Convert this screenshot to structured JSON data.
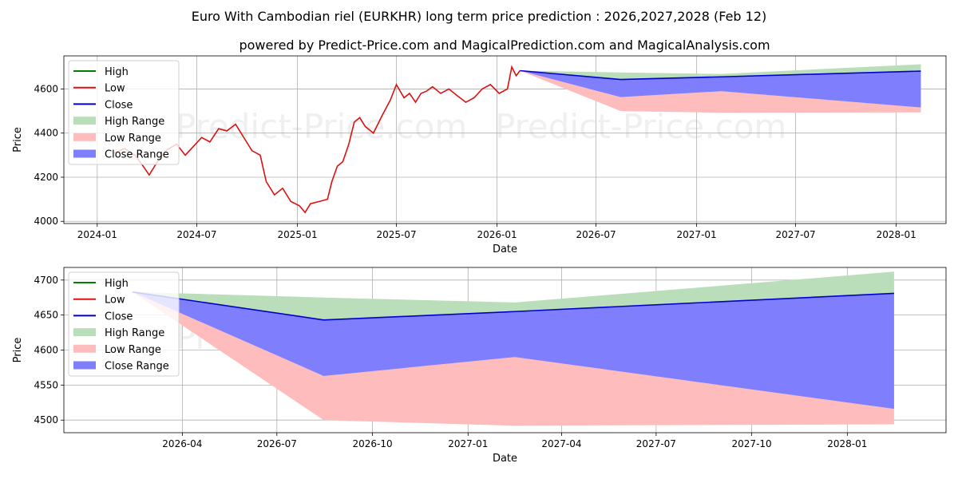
{
  "title": "Euro With Cambodian riel (EURKHR) long term price prediction : 2026,2027,2028 (Feb 12)",
  "subtitle": "powered by Predict-Price.com and MagicalPrediction.com and MagicalAnalysis.com",
  "watermark": "Predict-Price.com",
  "colors": {
    "high": "#008000",
    "low": "#dd1111",
    "close": "#0000cc",
    "high_range": "#b9deb9",
    "low_range": "#ffbcbc",
    "close_range": "#7f7ffe"
  },
  "chart_data": [
    {
      "type": "line",
      "title": "Euro With Cambodian riel (EURKHR) long term price prediction : 2026,2027,2028 (Feb 12)",
      "xlabel": "Date",
      "ylabel": "Price",
      "xlim": [
        "2023-11-01",
        "2028-04-01"
      ],
      "ylim": [
        3990,
        4750
      ],
      "xticks": [
        "2024-01",
        "2024-07",
        "2025-01",
        "2025-07",
        "2026-01",
        "2026-07",
        "2027-01",
        "2027-07",
        "2028-01"
      ],
      "yticks": [
        4000,
        4200,
        4400,
        4600
      ],
      "grid": true,
      "legend_position": "top-left",
      "legend": [
        "High",
        "Low",
        "Close",
        "High Range",
        "Low Range",
        "Close Range"
      ],
      "history": {
        "name": "Low",
        "x": [
          "2024-02-01",
          "2024-02-20",
          "2024-03-10",
          "2024-03-25",
          "2024-04-05",
          "2024-04-20",
          "2024-05-05",
          "2024-05-25",
          "2024-06-10",
          "2024-06-25",
          "2024-07-10",
          "2024-07-25",
          "2024-08-10",
          "2024-08-25",
          "2024-09-10",
          "2024-09-25",
          "2024-10-10",
          "2024-10-25",
          "2024-11-05",
          "2024-11-20",
          "2024-12-05",
          "2024-12-20",
          "2025-01-05",
          "2025-01-15",
          "2025-01-25",
          "2025-02-10",
          "2025-02-25",
          "2025-03-05",
          "2025-03-15",
          "2025-03-25",
          "2025-04-05",
          "2025-04-15",
          "2025-04-25",
          "2025-05-05",
          "2025-05-20",
          "2025-06-05",
          "2025-06-20",
          "2025-07-01",
          "2025-07-15",
          "2025-07-25",
          "2025-08-05",
          "2025-08-15",
          "2025-08-25",
          "2025-09-05",
          "2025-09-20",
          "2025-10-05",
          "2025-10-20",
          "2025-11-05",
          "2025-11-20",
          "2025-12-05",
          "2025-12-20",
          "2026-01-05",
          "2026-01-20",
          "2026-01-28",
          "2026-02-05",
          "2026-02-12"
        ],
        "values": [
          4310,
          4330,
          4300,
          4250,
          4210,
          4270,
          4320,
          4350,
          4300,
          4340,
          4380,
          4360,
          4420,
          4410,
          4440,
          4380,
          4320,
          4300,
          4180,
          4120,
          4150,
          4090,
          4070,
          4040,
          4080,
          4090,
          4100,
          4180,
          4250,
          4270,
          4350,
          4450,
          4470,
          4430,
          4400,
          4480,
          4550,
          4620,
          4560,
          4580,
          4540,
          4580,
          4590,
          4610,
          4580,
          4600,
          4570,
          4540,
          4560,
          4600,
          4620,
          4580,
          4600,
          4700,
          4660,
          4683
        ]
      },
      "prediction": {
        "x": [
          "2026-02-12",
          "2026-08-15",
          "2027-02-15",
          "2028-02-15"
        ],
        "close": [
          4683,
          4643,
          4655,
          4681
        ],
        "high_range": {
          "upper": [
            4683,
            4675,
            4668,
            4712
          ],
          "lower": [
            4683,
            4643,
            4655,
            4681
          ]
        },
        "close_range": {
          "upper": [
            4683,
            4643,
            4655,
            4681
          ],
          "lower": [
            4683,
            4563,
            4590,
            4516
          ]
        },
        "low_range": {
          "upper": [
            4683,
            4563,
            4590,
            4516
          ],
          "lower": [
            4683,
            4500,
            4492,
            4494
          ]
        }
      }
    },
    {
      "type": "area",
      "xlabel": "Date",
      "ylabel": "Price",
      "xlim": [
        "2025-12-08",
        "2028-04-05"
      ],
      "ylim": [
        4482,
        4718
      ],
      "xticks": [
        "2026-04",
        "2026-07",
        "2026-10",
        "2027-01",
        "2027-04",
        "2027-07",
        "2027-10",
        "2028-01"
      ],
      "yticks": [
        4500,
        4550,
        4600,
        4650,
        4700
      ],
      "grid": true,
      "legend_position": "top-left",
      "legend": [
        "High",
        "Low",
        "Close",
        "High Range",
        "Low Range",
        "Close Range"
      ],
      "prediction": {
        "x": [
          "2026-02-12",
          "2026-08-15",
          "2027-02-15",
          "2028-02-15"
        ],
        "close": [
          4683,
          4643,
          4655,
          4681
        ],
        "high_range": {
          "upper": [
            4683,
            4675,
            4668,
            4712
          ],
          "lower": [
            4683,
            4643,
            4655,
            4681
          ]
        },
        "close_range": {
          "upper": [
            4683,
            4643,
            4655,
            4681
          ],
          "lower": [
            4683,
            4563,
            4590,
            4516
          ]
        },
        "low_range": {
          "upper": [
            4683,
            4563,
            4590,
            4516
          ],
          "lower": [
            4683,
            4500,
            4492,
            4494
          ]
        }
      }
    }
  ]
}
